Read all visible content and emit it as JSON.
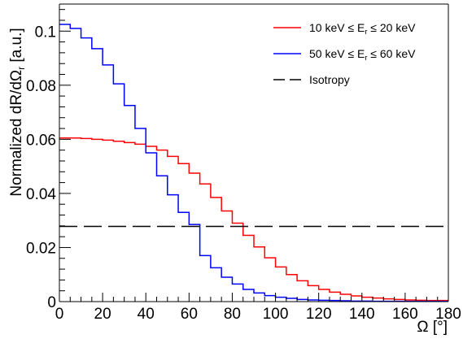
{
  "chart_data": {
    "type": "line",
    "step": true,
    "title": "",
    "xlabel": "Ω [°]",
    "ylabel": "Normalized dR/dΩ_r [a.u.]",
    "xlim": [
      0,
      180
    ],
    "ylim": [
      0,
      0.11
    ],
    "x_ticks": [
      0,
      20,
      40,
      60,
      80,
      100,
      120,
      140,
      160,
      180
    ],
    "y_ticks": [
      0,
      0.02,
      0.04,
      0.06,
      0.08,
      0.1
    ],
    "x_tick_labels": [
      "0",
      "20",
      "40",
      "60",
      "80",
      "100",
      "120",
      "140",
      "160",
      "180"
    ],
    "y_tick_labels": [
      "0",
      "0.02",
      "0.04",
      "0.06",
      "0.08",
      "0.1"
    ],
    "bin_width": 5,
    "legend_position": "top-right",
    "series": [
      {
        "name": "10 keV ≤ E_r ≤ 20 keV",
        "color": "#ff0000",
        "style": "step",
        "bin_edges_start": [
          0,
          5,
          10,
          15,
          20,
          25,
          30,
          35,
          40,
          45,
          50,
          55,
          60,
          65,
          70,
          75,
          80,
          85,
          90,
          95,
          100,
          105,
          110,
          115,
          120,
          125,
          130,
          135,
          140,
          145,
          150,
          155,
          160,
          165,
          170,
          175
        ],
        "values": [
          0.0605,
          0.0605,
          0.0603,
          0.06,
          0.0597,
          0.0593,
          0.0588,
          0.0582,
          0.0574,
          0.056,
          0.0537,
          0.051,
          0.0475,
          0.0435,
          0.0385,
          0.0335,
          0.029,
          0.0245,
          0.0202,
          0.0162,
          0.0128,
          0.01,
          0.0077,
          0.0059,
          0.0045,
          0.0035,
          0.0027,
          0.0021,
          0.0016,
          0.0013,
          0.001,
          0.0008,
          0.0006,
          0.0005,
          0.0004,
          0.0004
        ]
      },
      {
        "name": "50 keV ≤ E_r ≤ 60 keV",
        "color": "#0000ff",
        "style": "step",
        "bin_edges_start": [
          0,
          5,
          10,
          15,
          20,
          25,
          30,
          35,
          40,
          45,
          50,
          55,
          60,
          65,
          70,
          75,
          80,
          85,
          90,
          95,
          100,
          105,
          110,
          115,
          120,
          125,
          130,
          135,
          140,
          145,
          150,
          155,
          160,
          165,
          170,
          175
        ],
        "values": [
          0.1025,
          0.101,
          0.0975,
          0.0935,
          0.0875,
          0.0805,
          0.0725,
          0.064,
          0.055,
          0.0465,
          0.0395,
          0.033,
          0.0285,
          0.017,
          0.0125,
          0.009,
          0.0065,
          0.0045,
          0.0032,
          0.0022,
          0.0016,
          0.0012,
          0.0008,
          0.0006,
          0.0005,
          0.0004,
          0.0003,
          0.0002,
          0.0002,
          0.0001,
          0.0001,
          0.0001,
          0.0001,
          0.0001,
          0.0001,
          0.0001
        ]
      },
      {
        "name": "Isotropy",
        "color": "#000000",
        "style": "dashed",
        "value": 0.0278
      }
    ]
  }
}
